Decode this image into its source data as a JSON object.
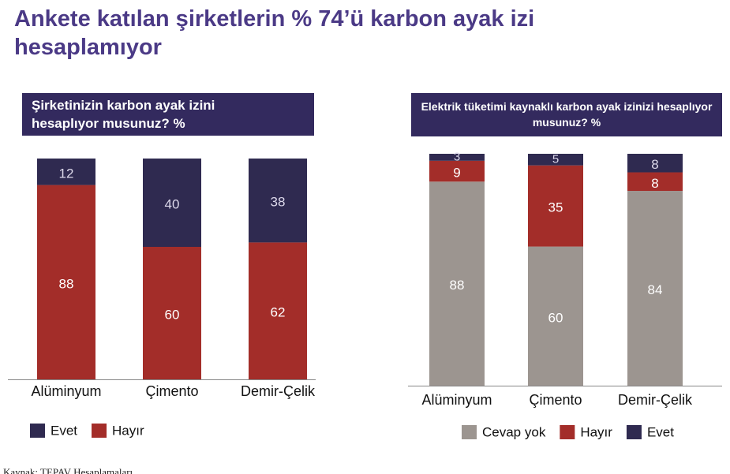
{
  "title": "Ankete katılan şirketlerin % 74’ü karbon ayak izi hesaplamıyor",
  "source": "Kaynak: TEPAV Hesaplamaları",
  "chart_data": [
    {
      "type": "bar",
      "stacked": true,
      "stack_order": "reverse",
      "title": "Şirketinizin karbon ayak izini hesaplıyor musunuz? %",
      "categories": [
        "Alüminyum",
        "Çimento",
        "Demir-Çelik"
      ],
      "ylim": [
        0,
        100
      ],
      "series": [
        {
          "name": "Evet",
          "color": "#2f2a50",
          "values": [
            12,
            40,
            38
          ]
        },
        {
          "name": "Hayır",
          "color": "#a32d29",
          "values": [
            88,
            60,
            62
          ]
        }
      ]
    },
    {
      "type": "bar",
      "stacked": true,
      "stack_order": "normal",
      "title": "Elektrik tüketimi kaynaklı karbon ayak izinizi hesaplıyor musunuz? %",
      "categories": [
        "Alüminyum",
        "Çimento",
        "Demir-Çelik"
      ],
      "ylim": [
        0,
        100
      ],
      "series": [
        {
          "name": "Cevap yok",
          "color": "#9c9590",
          "values": [
            88,
            60,
            84
          ]
        },
        {
          "name": "Hayır",
          "color": "#a32d29",
          "values": [
            9,
            35,
            8
          ]
        },
        {
          "name": "Evet",
          "color": "#2f2a50",
          "values": [
            3,
            5,
            8
          ]
        }
      ]
    }
  ]
}
